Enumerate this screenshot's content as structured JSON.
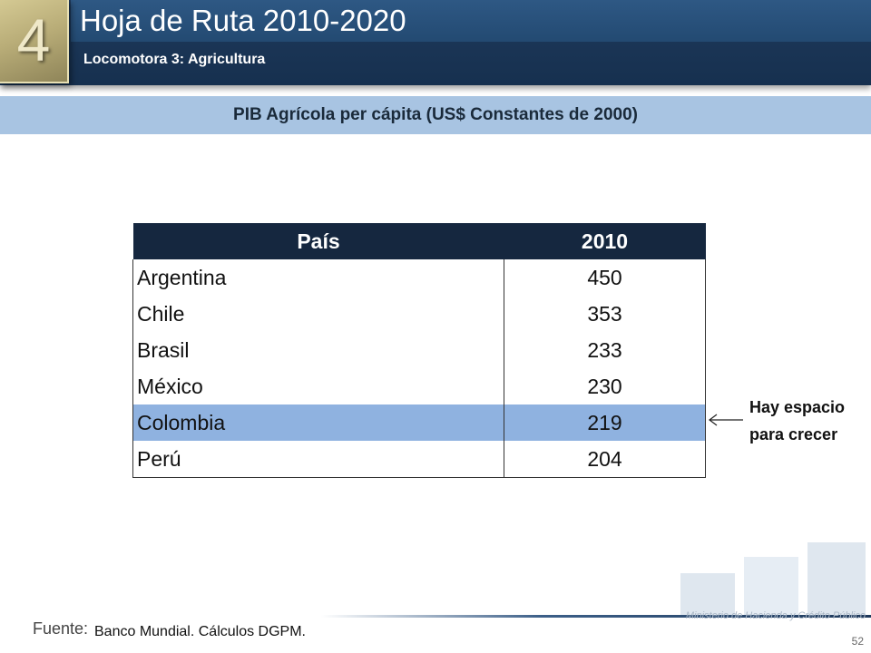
{
  "header": {
    "number": "4",
    "title": "Hoja de Ruta 2010-2020",
    "subtitle": "Locomotora 3: Agricultura"
  },
  "section": {
    "title": "PIB Agrícola per cápita (US$ Constantes de 2000)"
  },
  "table": {
    "columns": [
      "País",
      "2010"
    ],
    "rows": [
      {
        "country": "Argentina",
        "value": "450"
      },
      {
        "country": "Chile",
        "value": "353"
      },
      {
        "country": "Brasil",
        "value": "233"
      },
      {
        "country": "México",
        "value": "230"
      },
      {
        "country": "Colombia",
        "value": "219"
      },
      {
        "country": "Perú",
        "value": "204"
      }
    ],
    "highlight_color": "#8fb2e0"
  },
  "annotation": {
    "line1": "Hay espacio",
    "line2": "para crecer"
  },
  "footer": {
    "label": "Fuente:",
    "source": "Banco Mundial. Cálculos DGPM.",
    "ministry": "Ministerio de Hacienda y Crédito Público",
    "page": "52"
  },
  "colors": {
    "header": "#1f3a5c",
    "band": "#a8c4e2",
    "table_header": "#15273f"
  }
}
